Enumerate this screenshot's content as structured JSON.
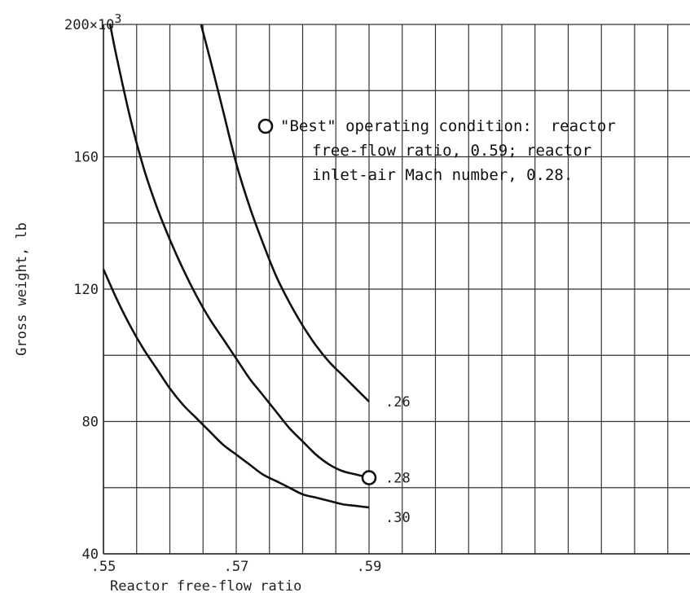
{
  "chart_data": {
    "type": "line",
    "xlabel": "Reactor free-flow ratio",
    "ylabel": "Gross weight, lb",
    "y_multiplier_label": "200×10",
    "y_multiplier_exp": "3",
    "xlim": [
      0.55,
      0.6
    ],
    "ylim": [
      40,
      200
    ],
    "x_ticks": [
      {
        "value": 0.55,
        "label": ".55"
      },
      {
        "value": 0.57,
        "label": ".57"
      },
      {
        "value": 0.59,
        "label": ".59"
      }
    ],
    "y_ticks": [
      {
        "value": 40,
        "label": "40"
      },
      {
        "value": 80,
        "label": "80"
      },
      {
        "value": 120,
        "label": "120"
      },
      {
        "value": 160,
        "label": "160"
      }
    ],
    "grid": true,
    "series": [
      {
        "name": ".26",
        "x": [
          0.5647,
          0.566,
          0.568,
          0.57,
          0.572,
          0.574,
          0.576,
          0.578,
          0.58,
          0.582,
          0.584,
          0.586,
          0.588,
          0.59
        ],
        "y": [
          200,
          190,
          174,
          158,
          145,
          134,
          124,
          116,
          109,
          103,
          98,
          94,
          90,
          86
        ]
      },
      {
        "name": ".28",
        "x": [
          0.551,
          0.552,
          0.554,
          0.556,
          0.558,
          0.56,
          0.562,
          0.564,
          0.566,
          0.568,
          0.57,
          0.572,
          0.574,
          0.576,
          0.578,
          0.58,
          0.582,
          0.584,
          0.586,
          0.588,
          0.59
        ],
        "y": [
          200,
          190,
          172,
          157,
          145,
          135,
          126,
          118,
          111,
          105,
          99,
          93,
          88,
          83,
          78,
          74,
          70,
          67,
          65,
          64,
          63
        ]
      },
      {
        "name": ".30",
        "x": [
          0.55,
          0.552,
          0.554,
          0.556,
          0.558,
          0.56,
          0.562,
          0.564,
          0.566,
          0.568,
          0.57,
          0.572,
          0.574,
          0.576,
          0.578,
          0.58,
          0.582,
          0.584,
          0.586,
          0.588,
          0.59
        ],
        "y": [
          126,
          117,
          109,
          102,
          96,
          90,
          85,
          81,
          77,
          73,
          70,
          67,
          64,
          62,
          60,
          58,
          57,
          56,
          55,
          54.5,
          54
        ]
      }
    ],
    "best_point": {
      "x": 0.59,
      "y": 63
    },
    "annotation": [
      "\"Best\" operating condition:  reactor",
      "free-flow ratio, 0.59; reactor",
      "inlet-air Mach number, 0.28."
    ]
  }
}
